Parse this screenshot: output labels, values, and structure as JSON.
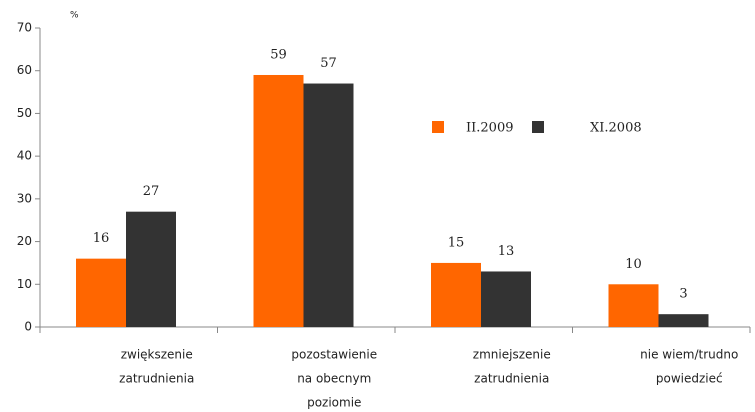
{
  "chart_data": {
    "type": "bar",
    "ylabel": "%",
    "categories": [
      [
        "zwiększenie",
        "zatrudnienia"
      ],
      [
        "pozostawienie",
        "na obecnym",
        "poziomie"
      ],
      [
        "zmniejszenie",
        "zatrudnienia"
      ],
      [
        "nie wiem/trudno",
        "powiedzieć"
      ]
    ],
    "series": [
      {
        "name": "II.2009",
        "color": "#ff6600",
        "values": [
          16,
          59,
          15,
          10
        ]
      },
      {
        "name": "XI.2008",
        "color": "#333333",
        "values": [
          27,
          57,
          13,
          3
        ]
      }
    ],
    "ylim": [
      0,
      70
    ],
    "yticks": [
      0,
      10,
      20,
      30,
      40,
      50,
      60,
      70
    ],
    "grid": false,
    "legend": "right"
  }
}
